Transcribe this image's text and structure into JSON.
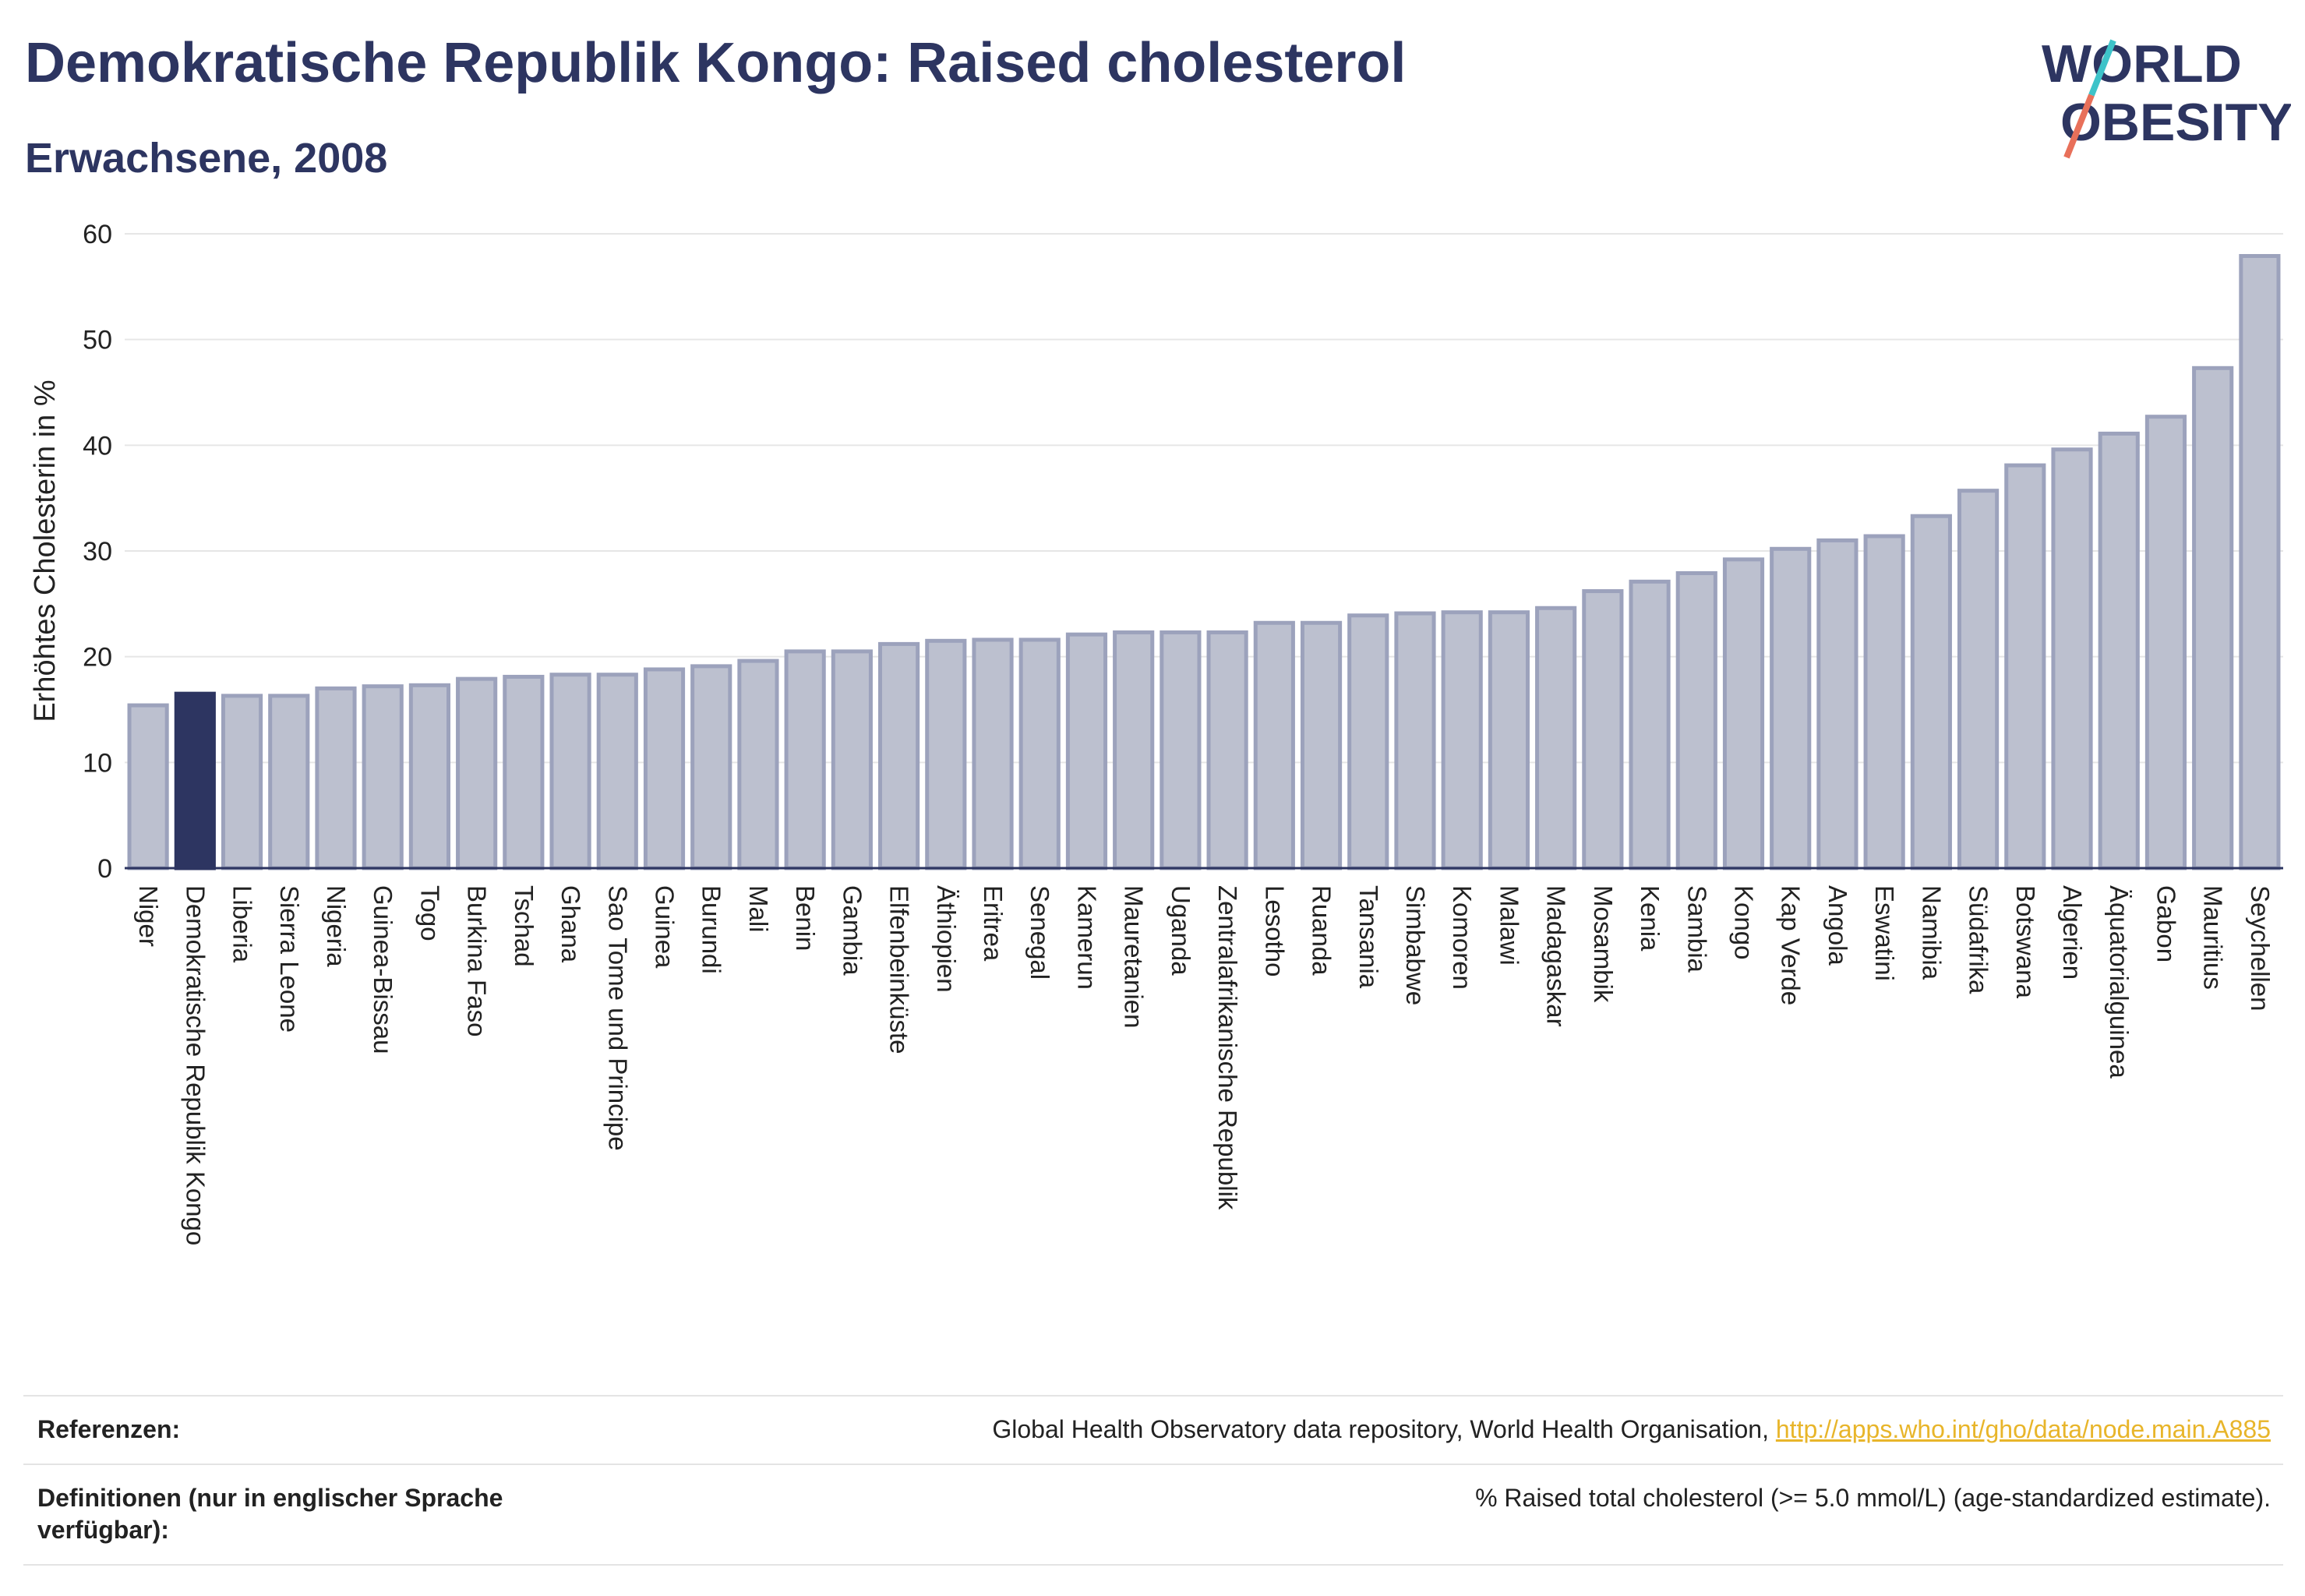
{
  "header": {
    "title": "Demokratische Republik Kongo: Raised cholesterol",
    "subtitle": "Erwachsene, 2008"
  },
  "logo": {
    "line1": "WORLD",
    "line2": "OBESITY",
    "text_color": "#2d3561",
    "slash_colors": [
      "#3ec3c9",
      "#e8705a"
    ]
  },
  "chart_data": {
    "type": "bar",
    "ylabel": "Erhöhtes Cholesterin in %",
    "xlabel": "",
    "ylim": [
      0,
      60
    ],
    "yticks": [
      0,
      10,
      20,
      30,
      40,
      50,
      60
    ],
    "grid": true,
    "highlight": "Demokratische Republik Kongo",
    "colors": {
      "bar_fill": "#bcc0cf",
      "bar_border": "#9ca2bc",
      "highlight_fill": "#2d3561",
      "grid": "#e6e6e6",
      "axis": "#2d3561"
    },
    "categories": [
      "Niger",
      "Demokratische Republik Kongo",
      "Liberia",
      "Sierra Leone",
      "Nigeria",
      "Guinea-Bissau",
      "Togo",
      "Burkina Faso",
      "Tschad",
      "Ghana",
      "Sao Tome und Principe",
      "Guinea",
      "Burundi",
      "Mali",
      "Benin",
      "Gambia",
      "Elfenbeinküste",
      "Äthiopien",
      "Eritrea",
      "Senegal",
      "Kamerun",
      "Mauretanien",
      "Uganda",
      "Zentralafrikanische Republik",
      "Lesotho",
      "Ruanda",
      "Tansania",
      "Simbabwe",
      "Komoren",
      "Malawi",
      "Madagaskar",
      "Mosambik",
      "Kenia",
      "Sambia",
      "Kongo",
      "Kap Verde",
      "Angola",
      "Eswatini",
      "Namibia",
      "Südafrika",
      "Botswana",
      "Algerien",
      "Äquatorialguinea",
      "Gabon",
      "Mauritius",
      "Seychellen"
    ],
    "values": [
      15.4,
      16.5,
      16.3,
      16.3,
      17.0,
      17.2,
      17.3,
      17.9,
      18.1,
      18.3,
      18.3,
      18.8,
      19.1,
      19.6,
      20.5,
      20.5,
      21.2,
      21.5,
      21.6,
      21.6,
      22.1,
      22.3,
      22.3,
      22.3,
      23.2,
      23.2,
      23.9,
      24.1,
      24.2,
      24.2,
      24.6,
      26.2,
      27.1,
      27.9,
      29.2,
      30.2,
      31.0,
      31.4,
      33.3,
      35.7,
      38.1,
      39.6,
      41.1,
      42.7,
      47.3,
      57.9
    ]
  },
  "references": {
    "refs_label": "Referenzen:",
    "refs_text": "Global Health Observatory data repository, World Health Organisation,",
    "refs_link": "http://apps.who.int/gho/data/node.main.A885",
    "defs_label": "Definitionen (nur in englischer Sprache verfügbar):",
    "defs_text": "% Raised total cholesterol (>= 5.0 mmol/L) (age-standardized estimate)."
  }
}
